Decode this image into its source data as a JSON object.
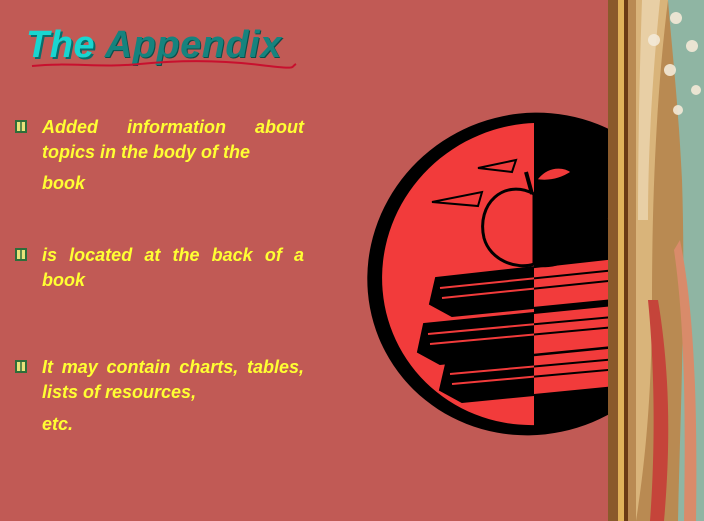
{
  "slide": {
    "title_word1": "The",
    "title_word2": "Appendix",
    "bullets": [
      {
        "line1": "Added information about",
        "line2": "topics in the body of the",
        "line3": "book"
      },
      {
        "line1": "is located at the back of a",
        "line2": "book"
      },
      {
        "line1": "It may contain charts,",
        "line2": "tables, lists of resources,",
        "line3": "etc."
      }
    ]
  },
  "colors": {
    "background": "#c15a55",
    "title_cyan": "#19d6d0",
    "title_teal": "#16837e",
    "bullet_text": "#ffff33",
    "underline": "#c8102e",
    "clipart_red": "#f23b3b",
    "clipart_black": "#000000"
  },
  "icons": {
    "bullet": "tiny-book-bullet-icon",
    "clipart": "apple-on-books-icon"
  }
}
